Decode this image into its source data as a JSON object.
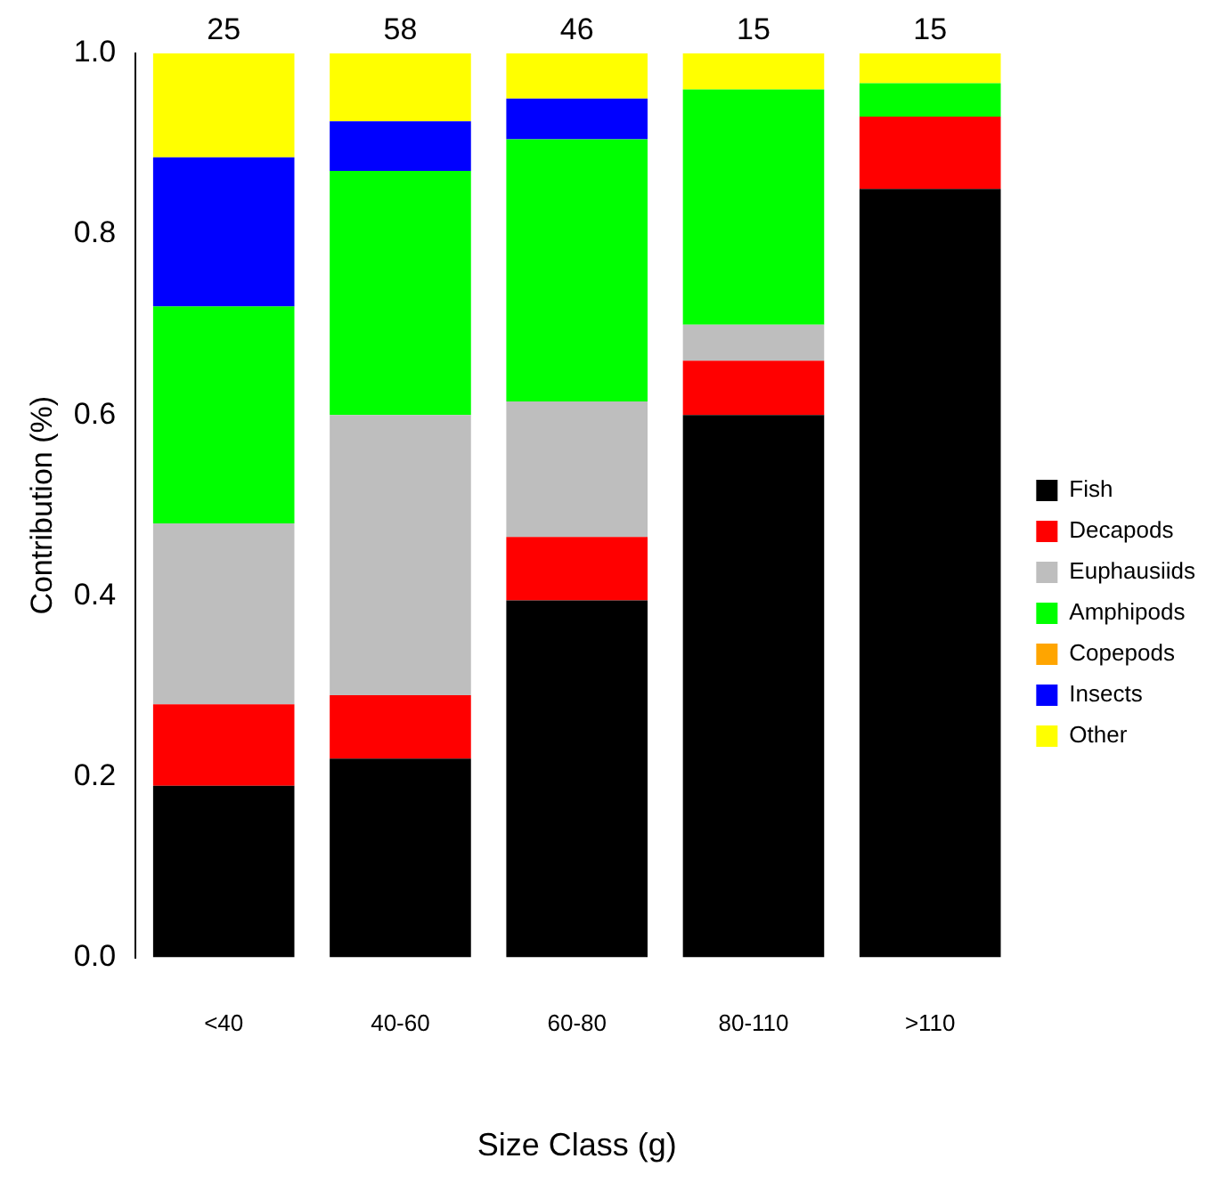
{
  "chart_data": {
    "type": "bar",
    "stacked": true,
    "xlabel": "Size Class (g)",
    "ylabel": "Contribution (%)",
    "categories": [
      "<40",
      "40-60",
      "60-80",
      "80-110",
      ">110"
    ],
    "series": [
      {
        "name": "Fish",
        "color": "#000000",
        "values": [
          0.19,
          0.22,
          0.395,
          0.6,
          0.85
        ]
      },
      {
        "name": "Decapods",
        "color": "#ff0000",
        "values": [
          0.09,
          0.07,
          0.07,
          0.06,
          0.08
        ]
      },
      {
        "name": "Euphausiids",
        "color": "#bebebe",
        "values": [
          0.2,
          0.31,
          0.15,
          0.04,
          0
        ]
      },
      {
        "name": "Amphipods",
        "color": "#00ff00",
        "values": [
          0.24,
          0.27,
          0.29,
          0.26,
          0.037
        ]
      },
      {
        "name": "Copepods",
        "color": "#ffa500",
        "values": [
          0,
          0,
          0,
          0,
          0
        ]
      },
      {
        "name": "Insects",
        "color": "#0000ff",
        "values": [
          0.165,
          0.055,
          0.045,
          0,
          0
        ]
      },
      {
        "name": "Other",
        "color": "#ffff00",
        "values": [
          0.115,
          0.075,
          0.05,
          0.04,
          0.033
        ]
      }
    ],
    "ylim": [
      0,
      1
    ],
    "yticks": [
      {
        "value": 0,
        "label": "0.0"
      },
      0.2,
      0.4,
      0.6,
      0.8,
      {
        "value": 1,
        "label": "1.0"
      }
    ],
    "grid": false,
    "legend": "right",
    "annotations": [
      "25",
      "58",
      "46",
      "15",
      "15"
    ]
  }
}
